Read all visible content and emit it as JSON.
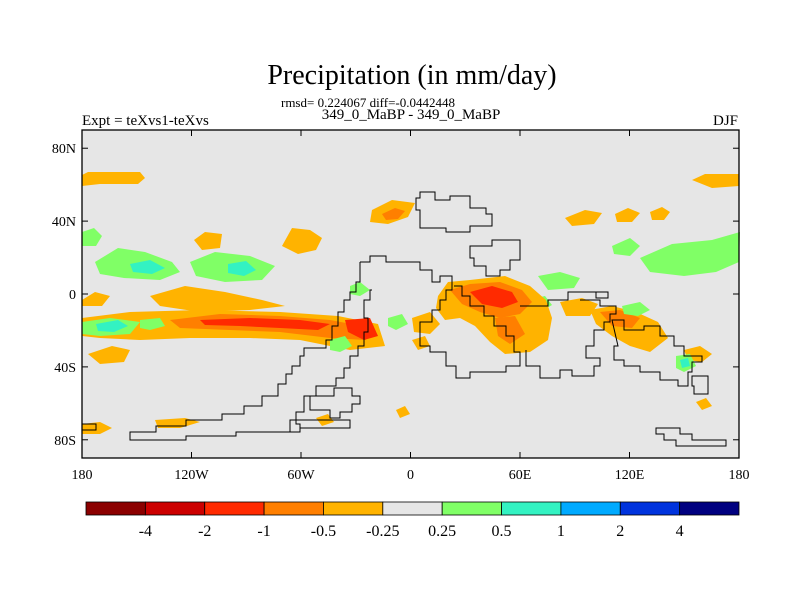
{
  "chart_data": {
    "type": "heatmap",
    "title": "Precipitation (in mm/day)",
    "subtitle": "rmsd= 0.224067 diff=-0.0442448",
    "experiment_label": "Expt = teXvs1-teXvs",
    "case_label": "349_0_MaBP - 349_0_MaBP",
    "season_label": "DJF",
    "xlim": [
      -180,
      180
    ],
    "ylim": [
      -90,
      90
    ],
    "x_ticks": [
      {
        "value": -180,
        "label": "180"
      },
      {
        "value": -120,
        "label": "120W"
      },
      {
        "value": -60,
        "label": "60W"
      },
      {
        "value": 0,
        "label": "0"
      },
      {
        "value": 60,
        "label": "60E"
      },
      {
        "value": 120,
        "label": "120E"
      },
      {
        "value": 180,
        "label": "180"
      }
    ],
    "y_ticks": [
      {
        "value": 80,
        "label": "80N"
      },
      {
        "value": 40,
        "label": "40N"
      },
      {
        "value": 0,
        "label": "0"
      },
      {
        "value": -40,
        "label": "40S"
      },
      {
        "value": -80,
        "label": "80S"
      }
    ],
    "colorbar": {
      "levels": [
        {
          "label": "-4"
        },
        {
          "label": "-2"
        },
        {
          "label": "-1"
        },
        {
          "label": "-0.5"
        },
        {
          "label": "-0.25"
        },
        {
          "label": "0.25"
        },
        {
          "label": "0.5"
        },
        {
          "label": "1"
        },
        {
          "label": "2"
        },
        {
          "label": "4"
        }
      ],
      "colors": [
        "#8b0000",
        "#cc0000",
        "#ff2a00",
        "#ff7f00",
        "#ffb300",
        "#e6e6e6",
        "#80ff66",
        "#33f2c2",
        "#00aaff",
        "#0033dd",
        "#000080"
      ]
    },
    "background_color": "#e6e6e6"
  }
}
